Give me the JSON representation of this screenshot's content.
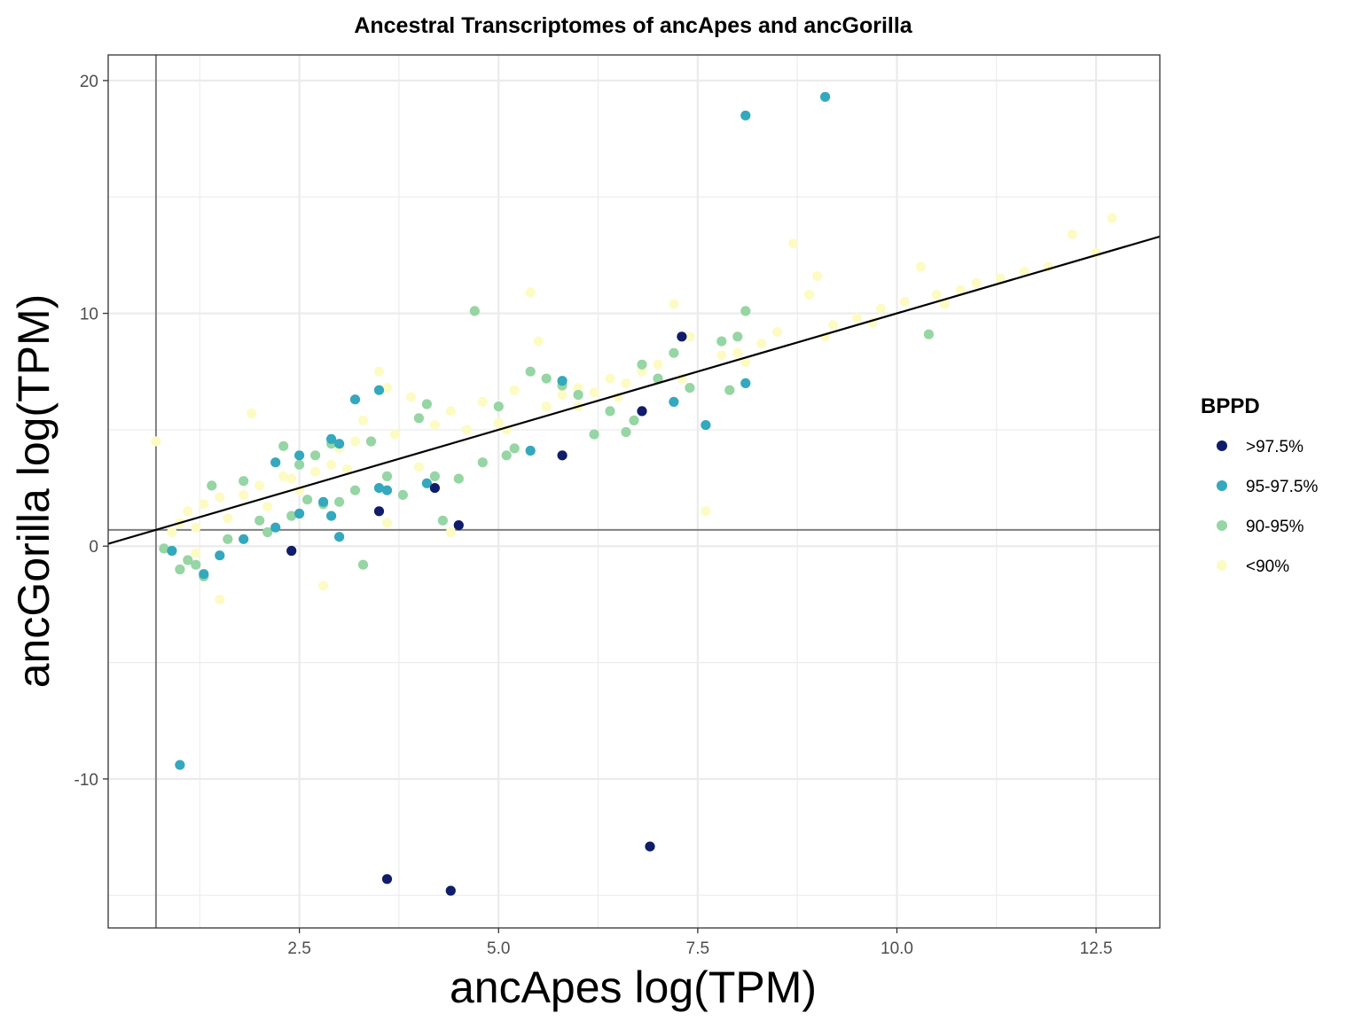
{
  "chart_data": {
    "type": "scatter",
    "title": "Ancestral Transcriptomes of ancApes and ancGorilla",
    "xlabel": "ancApes log(TPM)",
    "ylabel": "ancGorilla log(TPM)",
    "xlim": [
      0.1,
      13.3
    ],
    "ylim": [
      -16.4,
      21.1
    ],
    "x_ticks": [
      2.5,
      5.0,
      7.5,
      10.0,
      12.5
    ],
    "x_tick_labels": [
      "2.5",
      "5.0",
      "7.5",
      "10.0",
      "12.5"
    ],
    "y_ticks": [
      -10,
      0,
      10,
      20
    ],
    "y_tick_labels": [
      "-10",
      "0",
      "10",
      "20"
    ],
    "grid": true,
    "reference_lines": {
      "vertical_x": 0.7,
      "horizontal_y": 0.7,
      "trend_line": {
        "intercept": 0.0,
        "slope": 1.0
      }
    },
    "legend": {
      "title": "BPPD",
      "position": "right",
      "entries": [
        {
          "label": ">97.5%",
          "color": "#0f1d6a"
        },
        {
          "label": "95-97.5%",
          "color": "#34a8bd"
        },
        {
          "label": "90-95%",
          "color": "#96d5a4"
        },
        {
          "label": "<90%",
          "color": "#fdfbc4"
        }
      ]
    },
    "series": [
      {
        "name": "<90%",
        "color": "#fdfbc4",
        "points": [
          [
            0.7,
            4.5
          ],
          [
            0.9,
            0.6
          ],
          [
            1.0,
            1.0
          ],
          [
            1.1,
            1.5
          ],
          [
            1.2,
            0.8
          ],
          [
            1.3,
            1.8
          ],
          [
            1.5,
            2.1
          ],
          [
            1.6,
            1.2
          ],
          [
            1.8,
            2.2
          ],
          [
            1.9,
            5.7
          ],
          [
            2.0,
            2.6
          ],
          [
            2.1,
            1.7
          ],
          [
            2.3,
            3.0
          ],
          [
            2.5,
            2.4
          ],
          [
            2.7,
            3.2
          ],
          [
            2.9,
            3.5
          ],
          [
            3.0,
            4.2
          ],
          [
            3.2,
            4.5
          ],
          [
            3.3,
            5.4
          ],
          [
            3.5,
            7.5
          ],
          [
            3.6,
            6.8
          ],
          [
            3.7,
            4.8
          ],
          [
            3.9,
            6.4
          ],
          [
            4.0,
            3.4
          ],
          [
            4.2,
            5.2
          ],
          [
            4.4,
            5.8
          ],
          [
            4.4,
            0.6
          ],
          [
            4.6,
            5.0
          ],
          [
            4.8,
            6.2
          ],
          [
            5.0,
            5.3
          ],
          [
            5.2,
            6.7
          ],
          [
            5.4,
            10.9
          ],
          [
            5.5,
            8.8
          ],
          [
            5.6,
            6.0
          ],
          [
            5.8,
            6.5
          ],
          [
            6.0,
            6.8
          ],
          [
            6.2,
            6.6
          ],
          [
            6.4,
            7.2
          ],
          [
            6.6,
            7.0
          ],
          [
            6.8,
            7.5
          ],
          [
            7.0,
            7.8
          ],
          [
            7.2,
            10.4
          ],
          [
            7.4,
            9.0
          ],
          [
            7.6,
            1.5
          ],
          [
            7.8,
            8.2
          ],
          [
            8.0,
            8.3
          ],
          [
            8.3,
            8.7
          ],
          [
            8.5,
            9.2
          ],
          [
            8.7,
            13.0
          ],
          [
            8.9,
            10.8
          ],
          [
            9.0,
            11.6
          ],
          [
            9.2,
            9.5
          ],
          [
            9.5,
            9.8
          ],
          [
            9.8,
            10.2
          ],
          [
            10.1,
            10.5
          ],
          [
            10.3,
            12.0
          ],
          [
            10.5,
            10.8
          ],
          [
            10.8,
            11.0
          ],
          [
            11.0,
            11.3
          ],
          [
            11.3,
            11.5
          ],
          [
            11.6,
            11.8
          ],
          [
            11.9,
            12.0
          ],
          [
            12.2,
            13.4
          ],
          [
            12.5,
            12.6
          ],
          [
            12.7,
            14.1
          ],
          [
            1.2,
            -0.3
          ],
          [
            1.5,
            -2.3
          ],
          [
            2.8,
            -1.7
          ],
          [
            3.6,
            1.0
          ],
          [
            6.0,
            6.0
          ],
          [
            3.1,
            3.3
          ],
          [
            2.4,
            2.9
          ],
          [
            5.1,
            5.0
          ],
          [
            6.5,
            6.4
          ],
          [
            7.3,
            7.2
          ],
          [
            8.1,
            7.9
          ],
          [
            9.1,
            9.0
          ],
          [
            9.7,
            9.6
          ],
          [
            10.6,
            10.4
          ]
        ]
      },
      {
        "name": "90-95%",
        "color": "#96d5a4",
        "points": [
          [
            0.8,
            -0.1
          ],
          [
            1.0,
            -1.0
          ],
          [
            1.2,
            -0.8
          ],
          [
            1.4,
            2.6
          ],
          [
            1.6,
            0.3
          ],
          [
            1.8,
            2.8
          ],
          [
            2.0,
            1.1
          ],
          [
            2.1,
            0.6
          ],
          [
            2.3,
            4.3
          ],
          [
            2.4,
            1.3
          ],
          [
            2.5,
            3.5
          ],
          [
            2.6,
            2.0
          ],
          [
            2.7,
            3.9
          ],
          [
            2.8,
            1.8
          ],
          [
            2.9,
            4.4
          ],
          [
            3.0,
            1.9
          ],
          [
            3.2,
            2.4
          ],
          [
            3.3,
            -0.8
          ],
          [
            3.4,
            4.5
          ],
          [
            3.6,
            3.0
          ],
          [
            3.8,
            2.2
          ],
          [
            4.0,
            5.5
          ],
          [
            4.1,
            6.1
          ],
          [
            4.2,
            3.0
          ],
          [
            4.3,
            1.1
          ],
          [
            4.5,
            2.9
          ],
          [
            4.7,
            10.1
          ],
          [
            4.8,
            3.6
          ],
          [
            5.0,
            6.0
          ],
          [
            5.2,
            4.2
          ],
          [
            5.4,
            7.5
          ],
          [
            5.6,
            7.2
          ],
          [
            5.8,
            6.9
          ],
          [
            6.0,
            6.5
          ],
          [
            6.2,
            4.8
          ],
          [
            6.4,
            5.8
          ],
          [
            6.6,
            4.9
          ],
          [
            6.7,
            5.4
          ],
          [
            6.8,
            7.8
          ],
          [
            7.0,
            7.2
          ],
          [
            7.2,
            8.3
          ],
          [
            7.4,
            6.8
          ],
          [
            7.8,
            8.8
          ],
          [
            7.9,
            6.7
          ],
          [
            8.0,
            9.0
          ],
          [
            8.1,
            10.1
          ],
          [
            10.4,
            9.1
          ],
          [
            1.1,
            -0.6
          ],
          [
            1.3,
            -1.3
          ],
          [
            5.1,
            3.9
          ]
        ]
      },
      {
        "name": "95-97.5%",
        "color": "#34a8bd",
        "points": [
          [
            1.0,
            -9.4
          ],
          [
            0.9,
            -0.2
          ],
          [
            1.3,
            -1.2
          ],
          [
            1.5,
            -0.4
          ],
          [
            1.8,
            0.3
          ],
          [
            2.2,
            0.8
          ],
          [
            2.2,
            3.6
          ],
          [
            2.5,
            3.9
          ],
          [
            2.5,
            1.4
          ],
          [
            2.8,
            1.9
          ],
          [
            2.9,
            4.6
          ],
          [
            2.9,
            1.3
          ],
          [
            3.0,
            4.4
          ],
          [
            3.0,
            0.4
          ],
          [
            3.2,
            6.3
          ],
          [
            3.5,
            6.7
          ],
          [
            3.5,
            2.5
          ],
          [
            3.6,
            2.4
          ],
          [
            4.1,
            2.7
          ],
          [
            5.4,
            4.1
          ],
          [
            5.8,
            7.1
          ],
          [
            7.2,
            6.2
          ],
          [
            7.6,
            5.2
          ],
          [
            8.1,
            7.0
          ],
          [
            8.1,
            18.5
          ],
          [
            9.1,
            19.3
          ]
        ]
      },
      {
        "name": ">97.5%",
        "color": "#0f1d6a",
        "points": [
          [
            2.4,
            -0.2
          ],
          [
            3.5,
            1.5
          ],
          [
            3.6,
            -14.3
          ],
          [
            4.2,
            2.5
          ],
          [
            4.4,
            -14.8
          ],
          [
            4.5,
            0.9
          ],
          [
            5.8,
            3.9
          ],
          [
            6.8,
            5.8
          ],
          [
            6.9,
            -12.9
          ],
          [
            7.3,
            9.0
          ]
        ]
      }
    ]
  }
}
